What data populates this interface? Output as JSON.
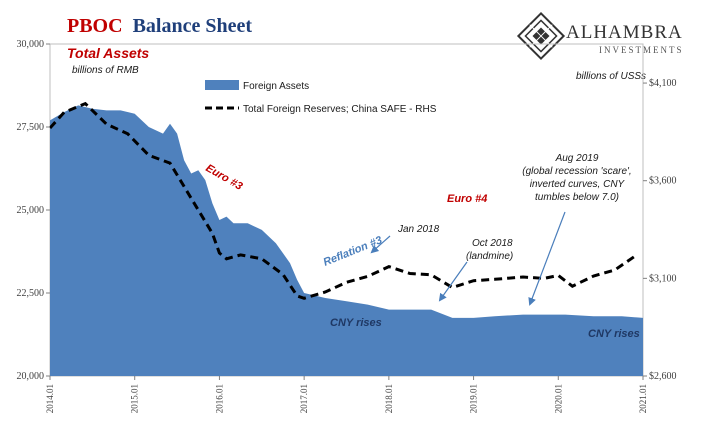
{
  "header": {
    "title_part1": "PBOC",
    "title_part2": "Balance Sheet",
    "logo_name": "ALHAMBRA",
    "logo_sub": "INVESTMENTS"
  },
  "annotations": {
    "total_assets": "Total Assets",
    "units_left": "billions of RMB",
    "units_right": "billions of USSs",
    "euro3": "Euro #3",
    "euro4": "Euro #4",
    "reflation3": "Reflation #3",
    "jan2018": "Jan 2018",
    "oct2018_line1": "Oct 2018",
    "oct2018_line2": "(landmine)",
    "aug2019_line1": "Aug 2019",
    "aug2019_line2": "(global recession 'scare',",
    "aug2019_line3": "inverted curves, CNY",
    "aug2019_line4": "tumbles below 7.0)",
    "cny_rises_1": "CNY rises",
    "cny_rises_2": "CNY rises"
  },
  "colors": {
    "area": "#4f81bd",
    "reserves_line": "#000000",
    "title_red": "#c00000",
    "title_blue": "#1f3f7a",
    "arrow": "#4a7ebb"
  },
  "chart_data": {
    "type": "area",
    "x_labels": [
      "2014.01",
      "2015.01",
      "2016.01",
      "2017.01",
      "2018.01",
      "2019.01",
      "2020.01",
      "2021.01"
    ],
    "x_range": [
      "2014-01",
      "2021-01"
    ],
    "left_axis": {
      "ylim": [
        20000,
        30000
      ],
      "ticks": [
        "20,000",
        "22,500",
        "25,000",
        "27,500",
        "30,000"
      ],
      "tick_values": [
        20000,
        22500,
        25000,
        27500,
        30000
      ]
    },
    "right_axis": {
      "ylim": [
        2600,
        4300
      ],
      "ticks": [
        "$2,600",
        "$3,100",
        "$3,600",
        "$4,100"
      ],
      "tick_values": [
        2600,
        3100,
        3600,
        4100
      ]
    },
    "legend": {
      "placement": "top-left"
    },
    "series": [
      {
        "name": "Foreign Assets",
        "kind": "area",
        "axis": "left",
        "points": [
          [
            "2014-01",
            27700
          ],
          [
            "2014-03",
            27950
          ],
          [
            "2014-05",
            28150
          ],
          [
            "2014-07",
            28050
          ],
          [
            "2014-09",
            28000
          ],
          [
            "2014-11",
            28000
          ],
          [
            "2015-01",
            27900
          ],
          [
            "2015-03",
            27500
          ],
          [
            "2015-05",
            27300
          ],
          [
            "2015-06",
            27600
          ],
          [
            "2015-07",
            27300
          ],
          [
            "2015-08",
            26500
          ],
          [
            "2015-09",
            26100
          ],
          [
            "2015-10",
            26200
          ],
          [
            "2015-11",
            25900
          ],
          [
            "2015-12",
            25200
          ],
          [
            "2016-01",
            24700
          ],
          [
            "2016-02",
            24800
          ],
          [
            "2016-03",
            24600
          ],
          [
            "2016-05",
            24600
          ],
          [
            "2016-07",
            24400
          ],
          [
            "2016-09",
            24000
          ],
          [
            "2016-11",
            23400
          ],
          [
            "2016-12",
            22900
          ],
          [
            "2017-01",
            22500
          ],
          [
            "2017-04",
            22350
          ],
          [
            "2017-07",
            22250
          ],
          [
            "2017-10",
            22150
          ],
          [
            "2018-01",
            22000
          ],
          [
            "2018-04",
            22000
          ],
          [
            "2018-07",
            22000
          ],
          [
            "2018-10",
            21750
          ],
          [
            "2019-01",
            21750
          ],
          [
            "2019-04",
            21800
          ],
          [
            "2019-08",
            21850
          ],
          [
            "2019-11",
            21850
          ],
          [
            "2020-02",
            21850
          ],
          [
            "2020-06",
            21800
          ],
          [
            "2020-10",
            21800
          ],
          [
            "2021-01",
            21750
          ]
        ]
      },
      {
        "name": "Total Foreign Reserves; China SAFE - RHS",
        "kind": "line",
        "axis": "right",
        "points": [
          [
            "2014-01",
            3870
          ],
          [
            "2014-03",
            3950
          ],
          [
            "2014-06",
            3995
          ],
          [
            "2014-09",
            3890
          ],
          [
            "2014-12",
            3840
          ],
          [
            "2015-03",
            3730
          ],
          [
            "2015-06",
            3690
          ],
          [
            "2015-09",
            3510
          ],
          [
            "2015-12",
            3330
          ],
          [
            "2016-01",
            3230
          ],
          [
            "2016-02",
            3200
          ],
          [
            "2016-04",
            3220
          ],
          [
            "2016-07",
            3200
          ],
          [
            "2016-10",
            3120
          ],
          [
            "2016-12",
            3010
          ],
          [
            "2017-01",
            2998
          ],
          [
            "2017-04",
            3030
          ],
          [
            "2017-07",
            3080
          ],
          [
            "2017-10",
            3110
          ],
          [
            "2018-01",
            3160
          ],
          [
            "2018-04",
            3125
          ],
          [
            "2018-07",
            3118
          ],
          [
            "2018-10",
            3053
          ],
          [
            "2019-01",
            3088
          ],
          [
            "2019-04",
            3095
          ],
          [
            "2019-08",
            3107
          ],
          [
            "2019-11",
            3100
          ],
          [
            "2020-01",
            3115
          ],
          [
            "2020-03",
            3060
          ],
          [
            "2020-06",
            3112
          ],
          [
            "2020-09",
            3143
          ],
          [
            "2020-12",
            3217
          ]
        ]
      }
    ]
  }
}
